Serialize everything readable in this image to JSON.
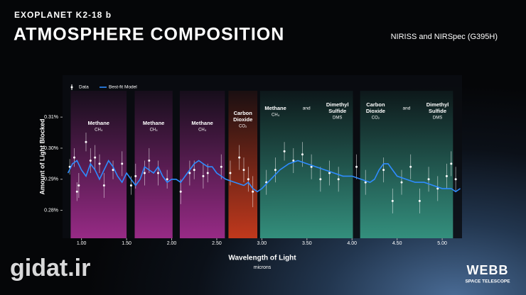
{
  "chart_data": {
    "type": "line",
    "kicker": "EXOPLANET K2-18 b",
    "title": "ATMOSPHERE COMPOSITION",
    "subtitle": "NIRISS and NIRSpec (G395H)",
    "ylabel": "Amount of Light Blocked",
    "xlabel": "Wavelength of Light",
    "xunit": "microns",
    "logo": "WEBB",
    "logo_subtitle": "SPACE TELESCOPE",
    "watermark": "gidat.ir",
    "xlim": [
      0.79,
      5.22
    ],
    "ylim": [
      0.271,
      0.3235
    ],
    "xticks": [
      {
        "value": 1,
        "label": "1.00"
      },
      {
        "value": 1.5,
        "label": "1.50"
      },
      {
        "value": 2,
        "label": "2.00"
      },
      {
        "value": 2.5,
        "label": "2.50"
      },
      {
        "value": 3,
        "label": "3.00"
      },
      {
        "value": 3.5,
        "label": "3.50"
      },
      {
        "value": 4,
        "label": "4.00"
      },
      {
        "value": 4.5,
        "label": "4.50"
      },
      {
        "value": 5,
        "label": "5.00"
      }
    ],
    "yticks": [
      {
        "value": 0.28,
        "label": "0.28%"
      },
      {
        "value": 0.29,
        "label": "0.29%"
      },
      {
        "value": 0.3,
        "label": "0.30%"
      },
      {
        "value": 0.31,
        "label": "0.31%"
      }
    ],
    "bands": [
      {
        "range": [
          0.88,
          1.5
        ],
        "color": "#b0309a",
        "groups": [
          {
            "lines": [
              "Methane"
            ],
            "formula": "CH₄"
          }
        ]
      },
      {
        "range": [
          1.59,
          2.01
        ],
        "color": "#b0309a",
        "groups": [
          {
            "lines": [
              "Methane"
            ],
            "formula": "CH₄"
          }
        ]
      },
      {
        "range": [
          2.09,
          2.59
        ],
        "color": "#b0309a",
        "groups": [
          {
            "lines": [
              "Methane"
            ],
            "formula": "CH₄"
          }
        ]
      },
      {
        "range": [
          2.63,
          2.95
        ],
        "color": "#e0401e",
        "groups": [
          {
            "lines": [
              "Carbon",
              "Dioxide"
            ],
            "formula": "CO₂"
          }
        ]
      },
      {
        "range": [
          2.98,
          4.01
        ],
        "color": "#3aa58e",
        "groups": [
          {
            "lines": [
              "Methane"
            ],
            "formula": "CH₄"
          },
          {
            "lines": [
              "and"
            ]
          },
          {
            "lines": [
              "Dimethyl",
              "Sulfide"
            ],
            "formula": "DMS"
          }
        ]
      },
      {
        "range": [
          4.09,
          5.12
        ],
        "color": "#3aa58e",
        "groups": [
          {
            "lines": [
              "Carbon",
              "Dioxide"
            ],
            "formula": "CO₂"
          },
          {
            "lines": [
              "and"
            ]
          },
          {
            "lines": [
              "Dimethyl",
              "Sulfide"
            ],
            "formula": "DMS"
          }
        ]
      }
    ],
    "series": [
      {
        "name": "Data",
        "type": "scatter",
        "color": "#ffffff",
        "x": [
          0.87,
          0.92,
          0.95,
          0.97,
          1.05,
          1.1,
          1.15,
          1.2,
          1.25,
          1.35,
          1.45,
          1.55,
          1.6,
          1.7,
          1.75,
          1.85,
          1.95,
          2.1,
          2.2,
          2.25,
          2.35,
          2.4,
          2.55,
          2.65,
          2.75,
          2.8,
          2.85,
          2.9,
          3.05,
          3.15,
          3.25,
          3.35,
          3.45,
          3.55,
          3.65,
          3.75,
          3.85,
          4.05,
          4.15,
          4.35,
          4.45,
          4.55,
          4.65,
          4.75,
          4.85,
          4.95,
          5.05,
          5.1,
          5.15
        ],
        "values": [
          0.294,
          0.297,
          0.286,
          0.288,
          0.302,
          0.296,
          0.297,
          0.295,
          0.288,
          0.293,
          0.295,
          0.288,
          0.291,
          0.292,
          0.296,
          0.292,
          0.29,
          0.286,
          0.292,
          0.293,
          0.291,
          0.292,
          0.294,
          0.292,
          0.297,
          0.293,
          0.29,
          0.286,
          0.289,
          0.293,
          0.299,
          0.296,
          0.298,
          0.294,
          0.29,
          0.292,
          0.29,
          0.294,
          0.289,
          0.293,
          0.283,
          0.289,
          0.294,
          0.283,
          0.29,
          0.287,
          0.291,
          0.295,
          0.29
        ],
        "errors": [
          0.0025,
          0.003,
          0.003,
          0.004,
          0.003,
          0.004,
          0.004,
          0.003,
          0.004,
          0.003,
          0.004,
          0.003,
          0.004,
          0.004,
          0.004,
          0.004,
          0.003,
          0.004,
          0.004,
          0.003,
          0.004,
          0.003,
          0.004,
          0.004,
          0.004,
          0.004,
          0.004,
          0.005,
          0.004,
          0.004,
          0.003,
          0.004,
          0.004,
          0.004,
          0.004,
          0.004,
          0.004,
          0.004,
          0.004,
          0.004,
          0.004,
          0.004,
          0.004,
          0.004,
          0.004,
          0.004,
          0.004,
          0.004,
          0.004
        ]
      },
      {
        "name": "Best-fit Model",
        "type": "line",
        "color": "#2e8cff",
        "x": [
          0.85,
          0.9,
          0.95,
          1.0,
          1.05,
          1.1,
          1.15,
          1.2,
          1.25,
          1.3,
          1.35,
          1.4,
          1.45,
          1.5,
          1.55,
          1.6,
          1.65,
          1.7,
          1.75,
          1.8,
          1.85,
          1.9,
          1.95,
          2.0,
          2.05,
          2.1,
          2.15,
          2.2,
          2.25,
          2.3,
          2.35,
          2.4,
          2.45,
          2.5,
          2.55,
          2.6,
          2.7,
          2.8,
          2.85,
          2.9,
          2.95,
          3.0,
          3.1,
          3.2,
          3.3,
          3.4,
          3.5,
          3.6,
          3.7,
          3.8,
          3.9,
          4.0,
          4.1,
          4.2,
          4.25,
          4.3,
          4.35,
          4.4,
          4.45,
          4.5,
          4.6,
          4.7,
          4.8,
          4.9,
          5.0,
          5.1,
          5.15,
          5.2
        ],
        "values": [
          0.292,
          0.295,
          0.296,
          0.293,
          0.291,
          0.295,
          0.293,
          0.29,
          0.293,
          0.296,
          0.294,
          0.291,
          0.289,
          0.292,
          0.29,
          0.288,
          0.29,
          0.294,
          0.293,
          0.292,
          0.294,
          0.291,
          0.289,
          0.29,
          0.29,
          0.289,
          0.291,
          0.293,
          0.295,
          0.296,
          0.295,
          0.294,
          0.294,
          0.292,
          0.291,
          0.29,
          0.289,
          0.288,
          0.289,
          0.287,
          0.286,
          0.287,
          0.29,
          0.293,
          0.295,
          0.296,
          0.295,
          0.294,
          0.293,
          0.292,
          0.291,
          0.291,
          0.29,
          0.289,
          0.29,
          0.293,
          0.295,
          0.295,
          0.293,
          0.291,
          0.29,
          0.289,
          0.289,
          0.288,
          0.287,
          0.287,
          0.286,
          0.287
        ]
      }
    ]
  }
}
